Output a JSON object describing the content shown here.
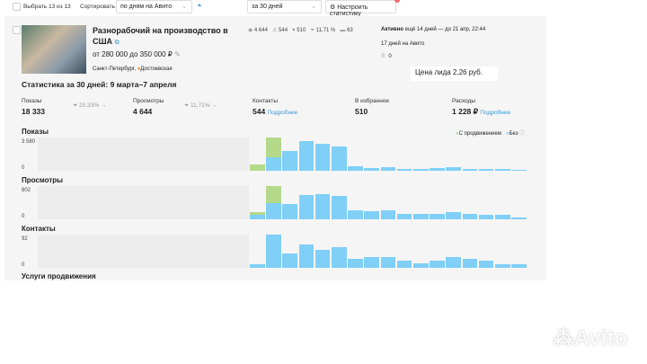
{
  "toolbar": {
    "select_all": "Выбрать 13 из 13",
    "sort_label": "Сортировать",
    "sort_value": "по дням на Авито",
    "period_value": "за 30 дней",
    "configure_button": "Настроить статистику"
  },
  "listing": {
    "title": "Разнорабочий на производство в США",
    "price": "от 280 000 до 350 000 ₽",
    "city": "Санкт-Петербург,",
    "metro": "Достоевская",
    "metro_color": "#f08a3c",
    "counters": {
      "views": "4 644",
      "contacts": "544",
      "favorites": "510",
      "conversion": "11,71 %",
      "messages": "63"
    },
    "status_bold": "Активно",
    "status_text": "ещё 14 дней — до 21 апр, 22:44",
    "days_on_avito": "17 дней на Авито",
    "calls": "0"
  },
  "lead_price": "Цена лида 2,26 руб.",
  "stats": {
    "title": "Статистика за 30 дней: 9 марта–7 апреля",
    "items": [
      {
        "label": "Показы",
        "value": "18 333",
        "extra": "25,33%"
      },
      {
        "label": "Просмотры",
        "value": "4 644",
        "extra": "11,71%"
      },
      {
        "label": "Контакты",
        "value": "544",
        "link": "Подробнее"
      },
      {
        "label": "В избранное",
        "value": "510"
      },
      {
        "label": "Расходы",
        "value": "1 228 ₽",
        "link": "Подробнее"
      }
    ]
  },
  "legend": {
    "promoted": "С продвижением",
    "plain": "Без"
  },
  "colors": {
    "promoted": "#b5d98a",
    "plain": "#7fcff7",
    "accent": "#3a9ad9"
  },
  "promo_title": "Услуги продвижения",
  "chart_data": [
    {
      "type": "bar",
      "title": "Показы",
      "ymax_label": "3 580",
      "ymin_label": "0",
      "ylim": [
        0,
        3580
      ],
      "series": [
        {
          "name": "С продвижением",
          "values": [
            650,
            2115,
            0,
            0,
            0,
            0,
            0,
            0,
            0,
            0,
            0,
            0,
            0,
            0,
            0,
            0,
            0
          ]
        },
        {
          "name": "Без",
          "values": [
            0,
            1465,
            2110,
            3190,
            2865,
            2605,
            490,
            325,
            360,
            230,
            230,
            260,
            360,
            230,
            165,
            230,
            65
          ]
        }
      ]
    },
    {
      "type": "bar",
      "title": "Просмотры",
      "ymax_label": "802",
      "ymin_label": "0",
      "ylim": [
        0,
        802
      ],
      "series": [
        {
          "name": "С продвижением",
          "values": [
            60,
            416,
            0,
            0,
            0,
            0,
            0,
            0,
            0,
            0,
            0,
            0,
            0,
            0,
            0,
            0,
            0
          ]
        },
        {
          "name": "Без",
          "values": [
            104,
            386,
            371,
            579,
            602,
            557,
            215,
            201,
            208,
            134,
            134,
            134,
            163,
            126,
            104,
            111,
            45
          ]
        }
      ]
    },
    {
      "type": "bar",
      "title": "Контакты",
      "ymax_label": "92",
      "ymin_label": "0",
      "ylim": [
        0,
        92
      ],
      "series": [
        {
          "name": "С продвижением",
          "values": [
            0,
            0,
            0,
            0,
            0,
            0,
            0,
            0,
            0,
            0,
            0,
            0,
            0,
            0,
            0,
            0,
            0
          ]
        },
        {
          "name": "Без",
          "values": [
            10,
            92,
            40,
            64,
            49,
            58,
            26,
            29,
            29,
            20,
            13,
            19,
            29,
            26,
            19,
            10,
            9
          ]
        }
      ]
    }
  ],
  "watermark": "Avito"
}
